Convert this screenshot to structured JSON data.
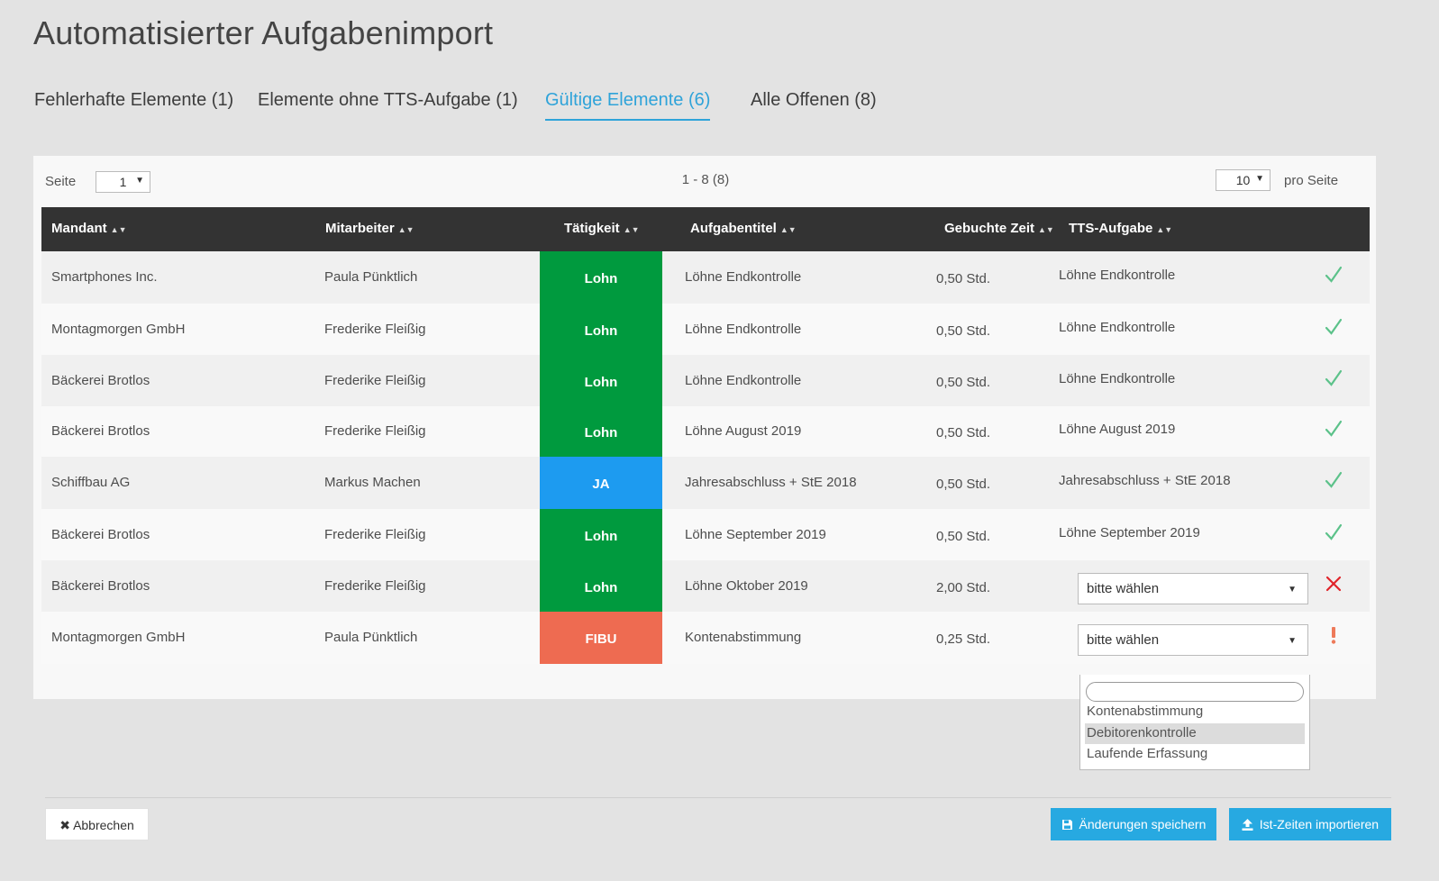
{
  "page": {
    "title": "Automatisierter Aufgabenimport"
  },
  "tabs": [
    {
      "label": "Fehlerhafte Elemente (1)",
      "active": false
    },
    {
      "label": "Elemente ohne TTS-Aufgabe (1)",
      "active": false
    },
    {
      "label": "Gültige Elemente (6)",
      "active": true
    },
    {
      "label": "Alle Offenen (8)",
      "active": false
    }
  ],
  "pager": {
    "page_label": "Seite",
    "page_value": "1",
    "range_text": "1 - 8 (8)",
    "per_page_value": "10",
    "per_page_label": "pro Seite"
  },
  "columns": {
    "mandant": "Mandant",
    "mitarbeiter": "Mitarbeiter",
    "taetigkeit": "Tätigkeit",
    "aufgabentitel": "Aufgabentitel",
    "gebuchte_zeit": "Gebuchte Zeit",
    "tts_aufgabe": "TTS-Aufgabe"
  },
  "activity_colors": {
    "Lohn": "#009a3e",
    "JA": "#1d9bf0",
    "FIBU": "#ee6b51"
  },
  "status_colors": {
    "ok": "#5cc28a",
    "error": "#e0242a",
    "warning": "#ee7a5a"
  },
  "rows": [
    {
      "mandant": "Smartphones Inc.",
      "mitarbeiter": "Paula Pünktlich",
      "taetigkeit": "Lohn",
      "aufgabentitel": "Löhne Endkontrolle",
      "zeit": "0,50 Std.",
      "tts": "Löhne Endkontrolle",
      "status": "ok"
    },
    {
      "mandant": "Montagmorgen GmbH",
      "mitarbeiter": "Frederike Fleißig",
      "taetigkeit": "Lohn",
      "aufgabentitel": "Löhne Endkontrolle",
      "zeit": "0,50 Std.",
      "tts": "Löhne Endkontrolle",
      "status": "ok"
    },
    {
      "mandant": "Bäckerei Brotlos",
      "mitarbeiter": "Frederike Fleißig",
      "taetigkeit": "Lohn",
      "aufgabentitel": "Löhne Endkontrolle",
      "zeit": "0,50 Std.",
      "tts": "Löhne Endkontrolle",
      "status": "ok"
    },
    {
      "mandant": "Bäckerei Brotlos",
      "mitarbeiter": "Frederike Fleißig",
      "taetigkeit": "Lohn",
      "aufgabentitel": "Löhne August 2019",
      "zeit": "0,50 Std.",
      "tts": "Löhne August 2019",
      "status": "ok"
    },
    {
      "mandant": "Schiffbau AG",
      "mitarbeiter": "Markus Machen",
      "taetigkeit": "JA",
      "aufgabentitel": "Jahresabschluss + StE 2018",
      "zeit": "0,50 Std.",
      "tts": "Jahresabschluss + StE 2018",
      "status": "ok"
    },
    {
      "mandant": "Bäckerei Brotlos",
      "mitarbeiter": "Frederike Fleißig",
      "taetigkeit": "Lohn",
      "aufgabentitel": "Löhne September 2019",
      "zeit": "0,50 Std.",
      "tts": "Löhne September 2019",
      "status": "ok"
    },
    {
      "mandant": "Bäckerei Brotlos",
      "mitarbeiter": "Frederike Fleißig",
      "taetigkeit": "Lohn",
      "aufgabentitel": "Löhne Oktober 2019",
      "zeit": "2,00 Std.",
      "tts_select": "bitte wählen",
      "status": "error"
    },
    {
      "mandant": "Montagmorgen GmbH",
      "mitarbeiter": "Paula Pünktlich",
      "taetigkeit": "FIBU",
      "aufgabentitel": "Kontenabstimmung",
      "zeit": "0,25 Std.",
      "tts_select": "bitte wählen",
      "status": "warning"
    }
  ],
  "dropdown": {
    "options": [
      "Kontenabstimmung",
      "Debitorenkontrolle",
      "Laufende Erfassung"
    ],
    "highlighted": "Debitorenkontrolle"
  },
  "footer": {
    "cancel_label": "Abbrechen",
    "save_label": "Änderungen speichern",
    "import_label": "Ist-Zeiten importieren"
  }
}
